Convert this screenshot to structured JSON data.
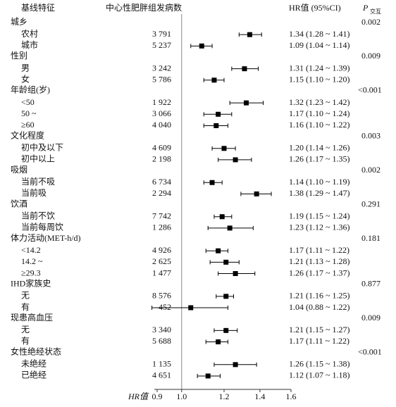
{
  "chart_data": {
    "type": "forest",
    "header": {
      "variable": "基线特征",
      "cases": "中心性肥胖组发病数",
      "hr": "HR值 (95%CI)",
      "p": "P",
      "p_sub": "交互"
    },
    "x_label": "HR值",
    "log_x": true,
    "xlim": [
      0.9,
      1.6
    ],
    "xticks": [
      0.9,
      {
        "value": 1,
        "label": "1.0"
      },
      1.2,
      1.4,
      1.6
    ],
    "reference": 1,
    "color": "#000000",
    "groups": [
      {
        "name": "城乡",
        "p": "0.002",
        "items": [
          {
            "label": "农村",
            "cases": "3 791",
            "hr": 1.34,
            "lo": 1.28,
            "hi": 1.41,
            "ci_label": "1.34 (1.28 ~ 1.41)"
          },
          {
            "label": "城市",
            "cases": "5 237",
            "hr": 1.09,
            "lo": 1.04,
            "hi": 1.14,
            "ci_label": "1.09 (1.04 ~ 1.14)"
          }
        ]
      },
      {
        "name": "性别",
        "p": "0.009",
        "items": [
          {
            "label": "男",
            "cases": "3 242",
            "hr": 1.31,
            "lo": 1.24,
            "hi": 1.39,
            "ci_label": "1.31 (1.24 ~ 1.39)"
          },
          {
            "label": "女",
            "cases": "5 786",
            "hr": 1.15,
            "lo": 1.1,
            "hi": 1.2,
            "ci_label": "1.15 (1.10 ~ 1.20)"
          }
        ]
      },
      {
        "name": "年龄组(岁)",
        "p": "<0.001",
        "items": [
          {
            "label": "<50",
            "cases": "1 922",
            "hr": 1.32,
            "lo": 1.23,
            "hi": 1.42,
            "ci_label": "1.32 (1.23 ~ 1.42)"
          },
          {
            "label": "50 ~",
            "cases": "3 066",
            "hr": 1.17,
            "lo": 1.1,
            "hi": 1.24,
            "ci_label": "1.17 (1.10 ~ 1.24)"
          },
          {
            "label": "≥60",
            "cases": "4 040",
            "hr": 1.16,
            "lo": 1.1,
            "hi": 1.22,
            "ci_label": "1.16 (1.10 ~ 1.22)"
          }
        ]
      },
      {
        "name": "文化程度",
        "p": "0.003",
        "items": [
          {
            "label": "初中及以下",
            "cases": "4 609",
            "hr": 1.2,
            "lo": 1.14,
            "hi": 1.26,
            "ci_label": "1.20 (1.14 ~ 1.26)"
          },
          {
            "label": "初中以上",
            "cases": "2 198",
            "hr": 1.26,
            "lo": 1.17,
            "hi": 1.35,
            "ci_label": "1.26 (1.17 ~ 1.35)"
          }
        ]
      },
      {
        "name": "吸烟",
        "p": "0.002",
        "items": [
          {
            "label": "当前不吸",
            "cases": "6 734",
            "hr": 1.14,
            "lo": 1.1,
            "hi": 1.19,
            "ci_label": "1.14 (1.10 ~ 1.19)"
          },
          {
            "label": "当前吸",
            "cases": "2 294",
            "hr": 1.38,
            "lo": 1.29,
            "hi": 1.47,
            "ci_label": "1.38 (1.29 ~ 1.47)"
          }
        ]
      },
      {
        "name": "饮酒",
        "p": "0.291",
        "items": [
          {
            "label": "当前不饮",
            "cases": "7 742",
            "hr": 1.19,
            "lo": 1.15,
            "hi": 1.24,
            "ci_label": "1.19 (1.15 ~ 1.24)"
          },
          {
            "label": "当前每周饮",
            "cases": "1 286",
            "hr": 1.23,
            "lo": 1.12,
            "hi": 1.36,
            "ci_label": "1.23 (1.12 ~ 1.36)"
          }
        ]
      },
      {
        "name": "体力活动(MET-h/d)",
        "p": "0.181",
        "items": [
          {
            "label": "<14.2",
            "cases": "4 926",
            "hr": 1.17,
            "lo": 1.11,
            "hi": 1.22,
            "ci_label": "1.17 (1.11 ~ 1.22)"
          },
          {
            "label": "14.2 ~",
            "cases": "2 625",
            "hr": 1.21,
            "lo": 1.13,
            "hi": 1.28,
            "ci_label": "1.21 (1.13 ~ 1.28)"
          },
          {
            "label": "≥29.3",
            "cases": "1 477",
            "hr": 1.26,
            "lo": 1.17,
            "hi": 1.37,
            "ci_label": "1.26 (1.17 ~ 1.37)"
          }
        ]
      },
      {
        "name": "IHD家族史",
        "p": "0.877",
        "items": [
          {
            "label": "无",
            "cases": "8 576",
            "hr": 1.21,
            "lo": 1.16,
            "hi": 1.25,
            "ci_label": "1.21 (1.16 ~ 1.25)"
          },
          {
            "label": "有",
            "cases": "452",
            "hr": 1.04,
            "lo": 0.88,
            "hi": 1.22,
            "ci_label": "1.04 (0.88 ~ 1.22)"
          }
        ]
      },
      {
        "name": "现患高血压",
        "p": "0.009",
        "items": [
          {
            "label": "无",
            "cases": "3 340",
            "hr": 1.21,
            "lo": 1.15,
            "hi": 1.27,
            "ci_label": "1.21 (1.15 ~ 1.27)"
          },
          {
            "label": "有",
            "cases": "5 688",
            "hr": 1.17,
            "lo": 1.11,
            "hi": 1.22,
            "ci_label": "1.17 (1.11 ~ 1.22)"
          }
        ]
      },
      {
        "name": "女性绝经状态",
        "p": "<0.001",
        "items": [
          {
            "label": "未绝经",
            "cases": "1 135",
            "hr": 1.26,
            "lo": 1.15,
            "hi": 1.38,
            "ci_label": "1.26 (1.15 ~ 1.38)"
          },
          {
            "label": "已绝经",
            "cases": "4 651",
            "hr": 1.12,
            "lo": 1.07,
            "hi": 1.18,
            "ci_label": "1.12 (1.07 ~ 1.18)"
          }
        ]
      }
    ]
  }
}
